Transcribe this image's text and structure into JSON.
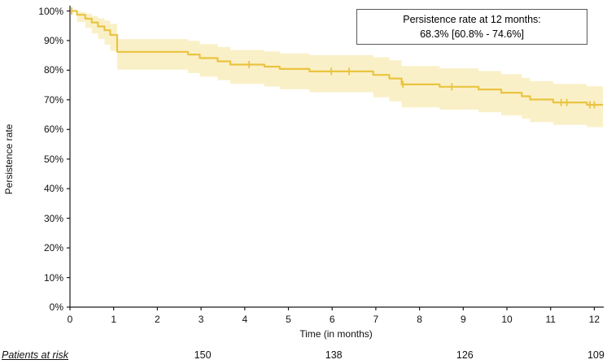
{
  "chart_data": {
    "type": "line",
    "subtype": "kaplan-meier-step-curve",
    "title": "",
    "xlabel": "Time (in months)",
    "ylabel": "Persistence rate",
    "xlim": [
      0,
      12
    ],
    "ylim": [
      0,
      100
    ],
    "grid": false,
    "legend": "none",
    "colors": {
      "curve": "#EAC440",
      "confidence_band": "#FAF0C8",
      "axis": "#1a1a1a",
      "annotation_border": "#595959"
    },
    "x_ticks": {
      "values": [
        0,
        1,
        2,
        3,
        4,
        5,
        6,
        7,
        8,
        9,
        10,
        11,
        12
      ],
      "labels": [
        "0",
        "1",
        "2",
        "3",
        "4",
        "5",
        "6",
        "7",
        "8",
        "9",
        "10",
        "11",
        "12"
      ]
    },
    "y_ticks": {
      "values": [
        0,
        10,
        20,
        30,
        40,
        50,
        60,
        70,
        80,
        90,
        100
      ],
      "labels": [
        "0%",
        "10%",
        "20%",
        "30%",
        "40%",
        "50%",
        "60%",
        "70%",
        "80%",
        "90%",
        "100%"
      ]
    },
    "series": [
      {
        "name": "Persistence rate",
        "steps": [
          {
            "t": 0.0,
            "v": 100.0
          },
          {
            "t": 0.16,
            "v": 98.7
          },
          {
            "t": 0.35,
            "v": 97.4
          },
          {
            "t": 0.5,
            "v": 96.1
          },
          {
            "t": 0.64,
            "v": 94.8
          },
          {
            "t": 0.79,
            "v": 93.5
          },
          {
            "t": 0.92,
            "v": 91.9
          },
          {
            "t": 1.08,
            "v": 86.2
          },
          {
            "t": 2.7,
            "v": 85.3
          },
          {
            "t": 2.97,
            "v": 84.1
          },
          {
            "t": 3.38,
            "v": 83.0
          },
          {
            "t": 3.67,
            "v": 81.9
          },
          {
            "t": 4.45,
            "v": 81.2
          },
          {
            "t": 4.8,
            "v": 80.4
          },
          {
            "t": 5.48,
            "v": 79.6
          },
          {
            "t": 6.94,
            "v": 78.4
          },
          {
            "t": 7.31,
            "v": 77.2
          },
          {
            "t": 7.59,
            "v": 75.2
          },
          {
            "t": 8.46,
            "v": 74.4
          },
          {
            "t": 9.35,
            "v": 73.5
          },
          {
            "t": 9.87,
            "v": 72.4
          },
          {
            "t": 10.34,
            "v": 71.2
          },
          {
            "t": 10.53,
            "v": 70.1
          },
          {
            "t": 11.06,
            "v": 69.1
          },
          {
            "t": 11.83,
            "v": 68.3
          }
        ],
        "end_t": 12.2,
        "censor_times": [
          0.04,
          4.1,
          5.98,
          6.39,
          7.62,
          8.74,
          11.24,
          11.37,
          11.9,
          12.0
        ],
        "ci_offsets": {
          "t": [
            0,
            0.16,
            1.08,
            3.0,
            6.0,
            7.59,
            12.2
          ],
          "upper": [
            0.0,
            1.0,
            4.3,
            4.7,
            5.7,
            6.2,
            6.3
          ],
          "lower": [
            0.0,
            2.4,
            6.0,
            6.3,
            7.2,
            7.8,
            7.5
          ]
        },
        "value_at_12_months": 68.3,
        "ci_at_12_months": [
          60.8,
          74.6
        ]
      }
    ],
    "annotation": {
      "line1": "Persistence rate at 12 months:",
      "line2": "68.3% [60.8% - 74.6%]"
    },
    "patients_at_risk": {
      "label": "Patients at risk",
      "times": [
        3,
        6,
        9,
        12
      ],
      "counts": [
        "150",
        "138",
        "126",
        "109"
      ]
    }
  }
}
